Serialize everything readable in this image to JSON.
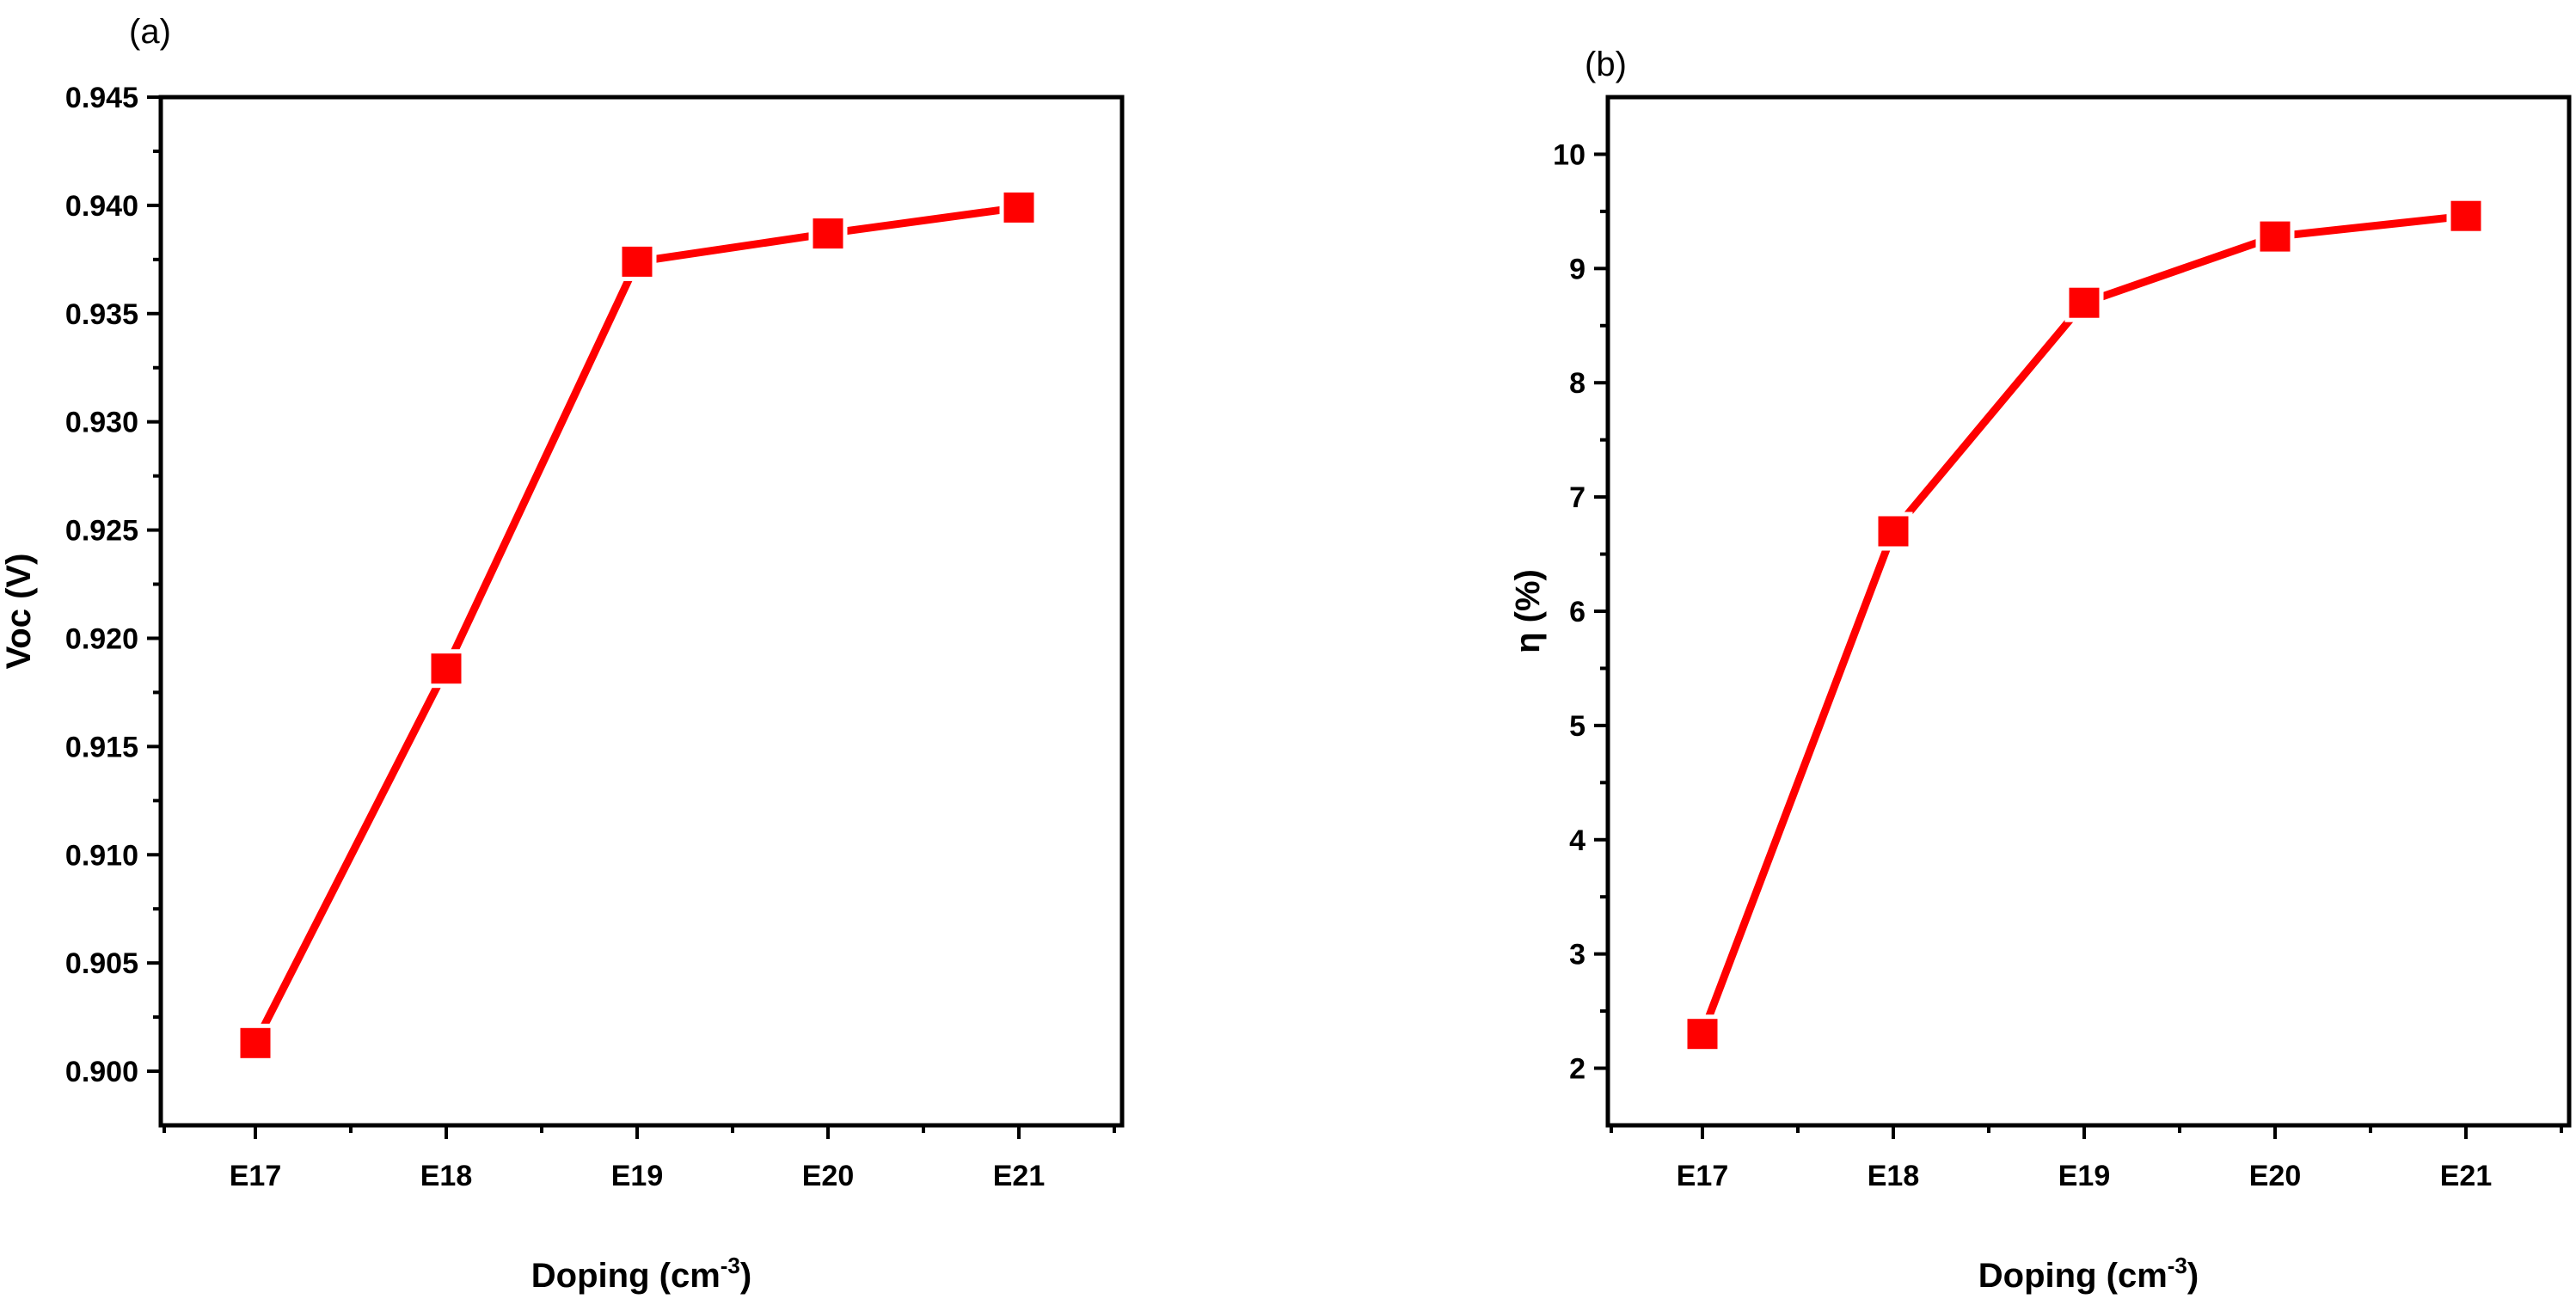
{
  "chart_data": [
    {
      "type": "line",
      "panel_label": "(a)",
      "categories": [
        "E17",
        "E18",
        "E19",
        "E20",
        "E21"
      ],
      "values": [
        0.9013,
        0.9186,
        0.9374,
        0.9387,
        0.9399
      ],
      "xlabel": "Doping (cm",
      "xlabel_sup": "-3",
      "xlabel_close": ")",
      "ylabel": "Voc (V)",
      "ylim": [
        0.8975,
        0.945
      ],
      "yticks": [
        "0.900",
        "0.905",
        "0.910",
        "0.915",
        "0.920",
        "0.925",
        "0.930",
        "0.935",
        "0.940",
        "0.945"
      ],
      "color": "#ff0000",
      "marker": "square",
      "grid": false
    },
    {
      "type": "line",
      "panel_label": "(b)",
      "categories": [
        "E17",
        "E18",
        "E19",
        "E20",
        "E21"
      ],
      "values": [
        2.3,
        6.7,
        8.7,
        9.28,
        9.46
      ],
      "xlabel": "Doping (cm",
      "xlabel_sup": "-3",
      "xlabel_close": ")",
      "ylabel": "η (%)",
      "ylim": [
        1.5,
        10.5
      ],
      "yticks": [
        "2",
        "3",
        "4",
        "5",
        "6",
        "7",
        "8",
        "9",
        "10"
      ],
      "color": "#ff0000",
      "marker": "square",
      "grid": false
    }
  ]
}
